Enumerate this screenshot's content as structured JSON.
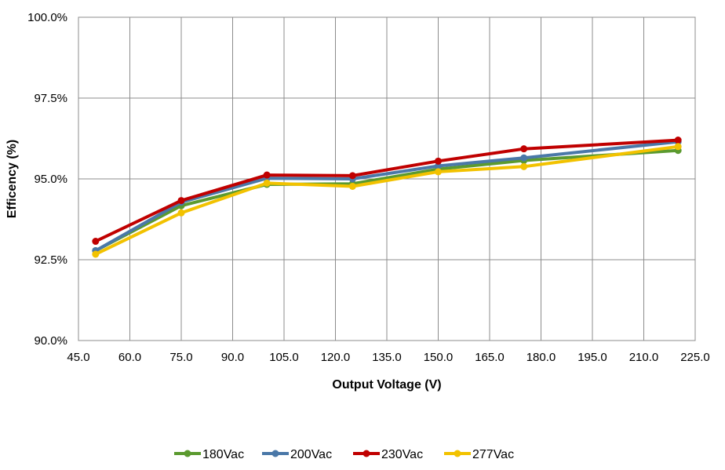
{
  "chart_data": {
    "type": "line",
    "xlabel": "Output Voltage (V)",
    "ylabel": "Efficency (%)",
    "xlim": [
      45,
      225
    ],
    "ylim": [
      90,
      100
    ],
    "x_ticks": [
      "45.0",
      "60.0",
      "75.0",
      "90.0",
      "105.0",
      "120.0",
      "135.0",
      "150.0",
      "165.0",
      "180.0",
      "195.0",
      "210.0",
      "225.0"
    ],
    "y_ticks": [
      "90.0%",
      "92.5%",
      "95.0%",
      "97.5%",
      "100.0%"
    ],
    "grid": "vertical and horizontal major gridlines",
    "legend_position": "bottom",
    "x": [
      50,
      75,
      100,
      125,
      150,
      175,
      220
    ],
    "series": [
      {
        "name": "180Vac",
        "color": "#5b9a2f",
        "values": [
          92.78,
          94.17,
          94.83,
          94.85,
          95.3,
          95.57,
          95.88
        ]
      },
      {
        "name": "200Vac",
        "color": "#4a78a8",
        "values": [
          92.78,
          94.28,
          95.02,
          95.0,
          95.4,
          95.65,
          96.15
        ]
      },
      {
        "name": "230Vac",
        "color": "#c00000",
        "values": [
          93.07,
          94.33,
          95.12,
          95.1,
          95.55,
          95.93,
          96.2
        ]
      },
      {
        "name": "277Vac",
        "color": "#f2c200",
        "values": [
          92.67,
          93.95,
          94.87,
          94.77,
          95.22,
          95.38,
          96.0
        ]
      }
    ]
  }
}
